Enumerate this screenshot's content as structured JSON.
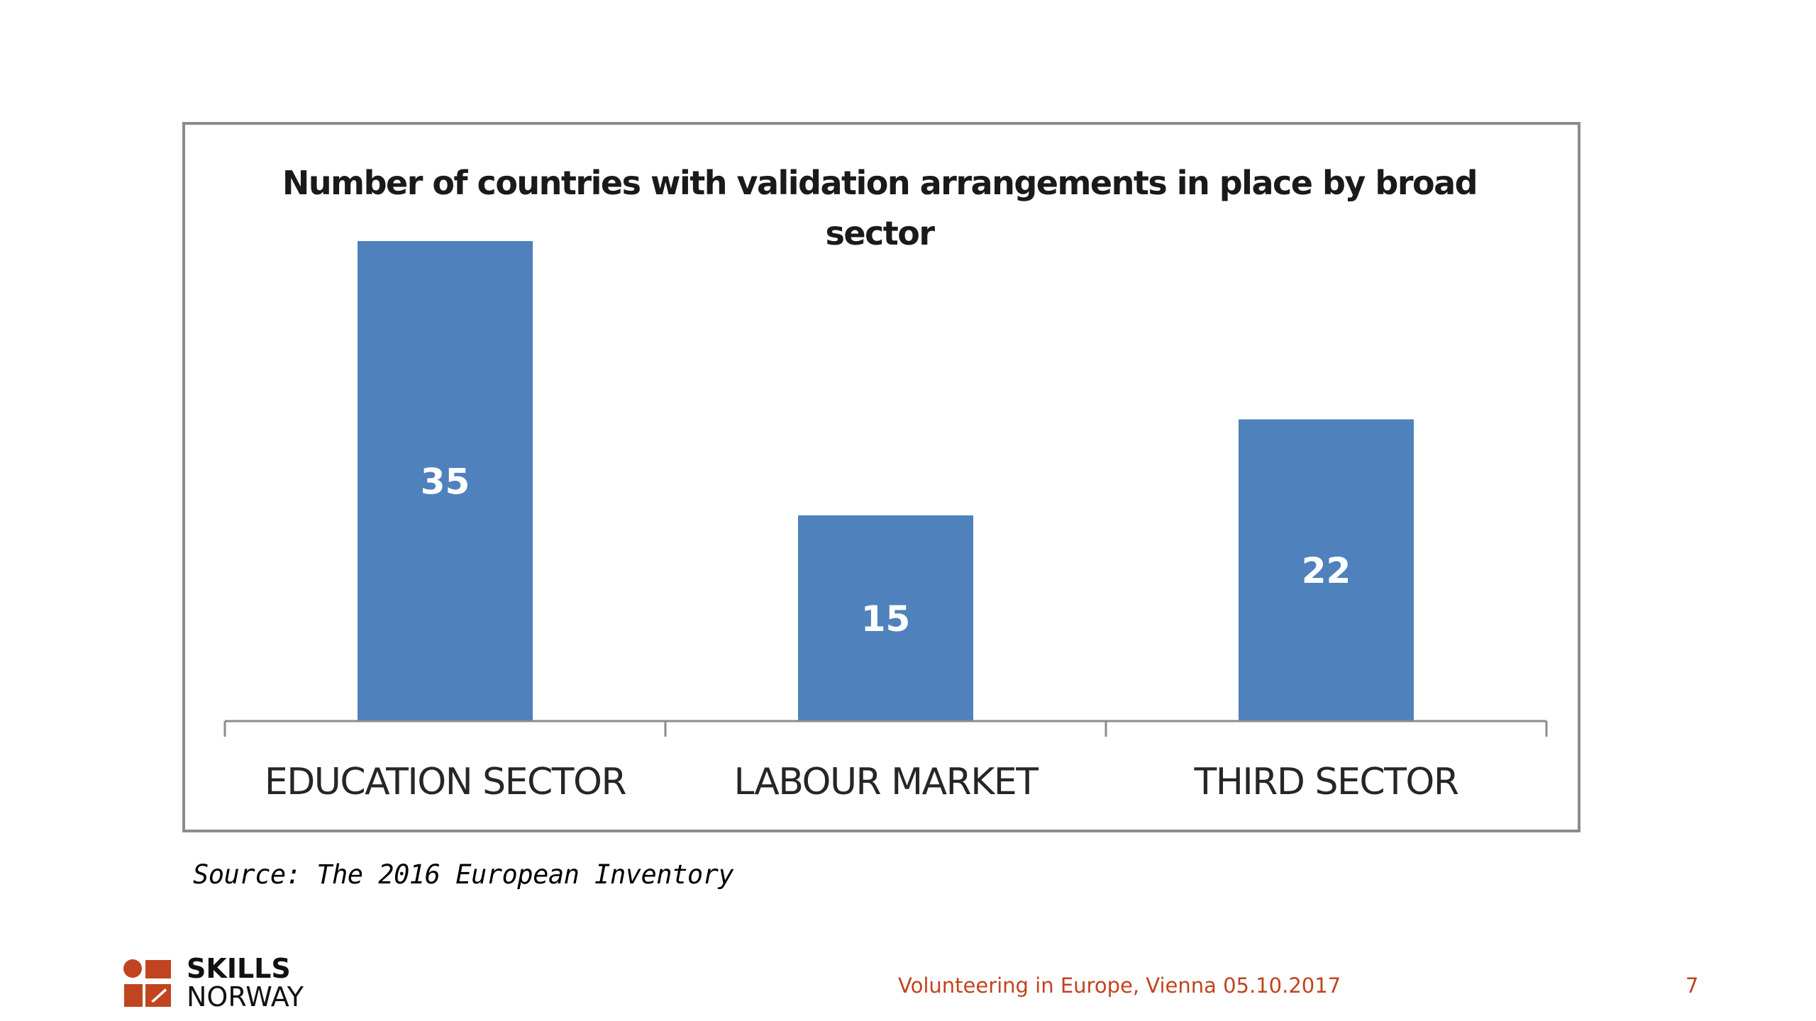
{
  "chart_data": {
    "type": "bar",
    "title": "Number of countries with validation arrangements in place by broad sector",
    "title_lines": [
      "Number of countries with validation arrangements in place by broad",
      "sector"
    ],
    "categories": [
      "EDUCATION SECTOR",
      "LABOUR MARKET",
      "THIRD SECTOR"
    ],
    "values": [
      35,
      15,
      22
    ],
    "data_labels": [
      "35",
      "15",
      "22"
    ],
    "xlabel": "",
    "ylabel": "",
    "ylim": [
      0,
      35
    ],
    "grid": false,
    "legend": "none",
    "bar_color": "#4f81bd"
  },
  "source_note": "Source: The 2016 European Inventory",
  "brand": {
    "line1": "SKILLS",
    "line2": "NORWAY",
    "logo_color": "#c0441f"
  },
  "footer": {
    "event": "Volunteering in Europe, Vienna 05.10.2017",
    "page": "7",
    "color": "#c0441f"
  }
}
